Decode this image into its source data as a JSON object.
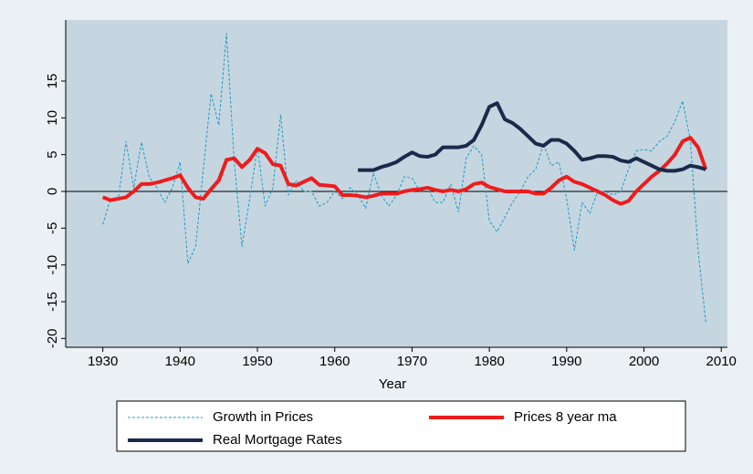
{
  "chart_data": {
    "type": "line",
    "xlabel": "Year",
    "x": [
      1930,
      1931,
      1932,
      1933,
      1934,
      1935,
      1936,
      1937,
      1938,
      1939,
      1940,
      1941,
      1942,
      1943,
      1944,
      1945,
      1946,
      1947,
      1948,
      1949,
      1950,
      1951,
      1952,
      1953,
      1954,
      1955,
      1956,
      1957,
      1958,
      1959,
      1960,
      1961,
      1962,
      1963,
      1964,
      1965,
      1966,
      1967,
      1968,
      1969,
      1970,
      1971,
      1972,
      1973,
      1974,
      1975,
      1976,
      1977,
      1978,
      1979,
      1980,
      1981,
      1982,
      1983,
      1984,
      1985,
      1986,
      1987,
      1988,
      1989,
      1990,
      1991,
      1992,
      1993,
      1994,
      1995,
      1996,
      1997,
      1998,
      1999,
      2000,
      2001,
      2002,
      2003,
      2004,
      2005,
      2006,
      2007,
      2008
    ],
    "series": [
      {
        "name": "Growth in Prices",
        "color": "#1a9bc4",
        "dashed": true,
        "width": 1,
        "values": [
          -4.5,
          -1,
          -1,
          6.8,
          0.5,
          6.7,
          2,
          0.5,
          -1.5,
          0.5,
          4,
          -9.8,
          -7.5,
          3,
          13.3,
          9,
          21.5,
          4,
          -7.5,
          -1,
          6,
          -2,
          0.5,
          10.4,
          -0.5,
          1.5,
          0,
          0,
          -2,
          -1.5,
          0,
          -1,
          0.5,
          -0.5,
          -2.3,
          2.5,
          -0.5,
          -2,
          -0.5,
          2,
          1.8,
          0,
          0.5,
          -1.5,
          -1.5,
          1,
          -2.8,
          4.5,
          6.2,
          5,
          -4,
          -5.5,
          -3.5,
          -1.5,
          0,
          2,
          3,
          6.5,
          3.5,
          4,
          -1,
          -8,
          -1.5,
          -3,
          0,
          0,
          -0.5,
          0,
          3,
          5.5,
          5.7,
          5.5,
          6.8,
          7.5,
          9.5,
          12.3,
          7,
          -8,
          -17.8
        ]
      },
      {
        "name": "Prices 8 year ma",
        "color": "#ee1c1c",
        "dashed": false,
        "width": 4,
        "values": [
          -0.8,
          -1.2,
          -1,
          -0.8,
          0,
          1,
          1,
          1.2,
          1.5,
          1.8,
          2.2,
          0.5,
          -0.8,
          -1,
          0.3,
          1.5,
          4.3,
          4.5,
          3.3,
          4.3,
          5.8,
          5.2,
          3.7,
          3.5,
          1,
          0.8,
          1.3,
          1.8,
          0.9,
          0.8,
          0.7,
          -0.5,
          -0.5,
          -0.6,
          -0.8,
          -0.6,
          -0.3,
          -0.3,
          -0.3,
          0,
          0.2,
          0.3,
          0.5,
          0.2,
          0,
          0.2,
          0,
          0.3,
          1,
          1.2,
          0.6,
          0.3,
          0,
          0,
          0,
          0,
          -0.3,
          -0.3,
          0.5,
          1.5,
          2,
          1.3,
          1,
          0.5,
          0,
          -0.5,
          -1.2,
          -1.7,
          -1.3,
          0,
          1,
          2,
          2.8,
          3.8,
          5,
          6.8,
          7.3,
          6,
          3
        ]
      },
      {
        "name": "Real Mortgage Rates",
        "color": "#1b2a4a",
        "dashed": false,
        "width": 4,
        "values": [
          null,
          null,
          null,
          null,
          null,
          null,
          null,
          null,
          null,
          null,
          null,
          null,
          null,
          null,
          null,
          null,
          null,
          null,
          null,
          null,
          null,
          null,
          null,
          null,
          null,
          null,
          null,
          null,
          null,
          null,
          null,
          null,
          null,
          2.9,
          2.9,
          2.9,
          3.3,
          3.6,
          4,
          4.7,
          5.3,
          4.8,
          4.7,
          5,
          6,
          6,
          6,
          6.2,
          7,
          9,
          11.5,
          12,
          9.8,
          9.3,
          8.5,
          7.5,
          6.5,
          6.2,
          7,
          7,
          6.5,
          5.5,
          4.3,
          4.5,
          4.8,
          4.8,
          4.7,
          4.2,
          4,
          4.5,
          4,
          3.5,
          3,
          2.8,
          2.8,
          3,
          3.5,
          3.3,
          3
        ]
      }
    ],
    "xlim": [
      1925.2,
      2010.8
    ],
    "xticks": [
      1930,
      1940,
      1950,
      1960,
      1970,
      1980,
      1990,
      2000,
      2010
    ],
    "ylim": [
      -21.2,
      23.3
    ],
    "yticks": [
      -20,
      -15,
      -10,
      -5,
      0,
      5,
      10,
      15
    ],
    "reference_line": 0,
    "grid": false,
    "legend": "bottom"
  }
}
